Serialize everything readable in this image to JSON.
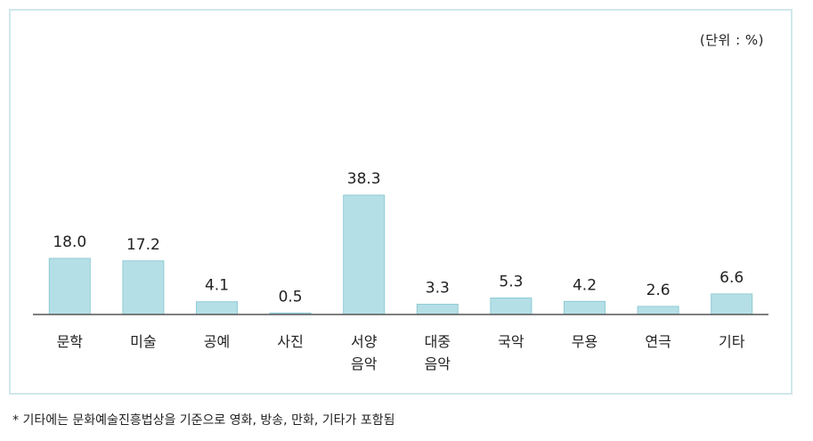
{
  "chart_data": {
    "type": "bar",
    "unit_label": "(단위 : %)",
    "categories": [
      [
        "문학"
      ],
      [
        "미술"
      ],
      [
        "공예"
      ],
      [
        "사진"
      ],
      [
        "서양",
        "음악"
      ],
      [
        "대중",
        "음악"
      ],
      [
        "국악"
      ],
      [
        "무용"
      ],
      [
        "연극"
      ],
      [
        "기타"
      ]
    ],
    "values": [
      18.0,
      17.2,
      4.1,
      0.5,
      38.3,
      3.3,
      5.3,
      4.2,
      2.6,
      6.6
    ],
    "value_labels": [
      "18.0",
      "17.2",
      "4.1",
      "0.5",
      "38.3",
      "3.3",
      "5.3",
      "4.2",
      "2.6",
      "6.6"
    ],
    "ylim": [
      0,
      38.3
    ],
    "grid": false,
    "bar_color": "#b5dfe6",
    "bar_stroke": "#8fcbd5",
    "axis_color": "#555555"
  },
  "footnote": "* 기타에는 문화예술진흥법상을 기준으로 영화, 방송, 만화, 기타가 포함됨"
}
